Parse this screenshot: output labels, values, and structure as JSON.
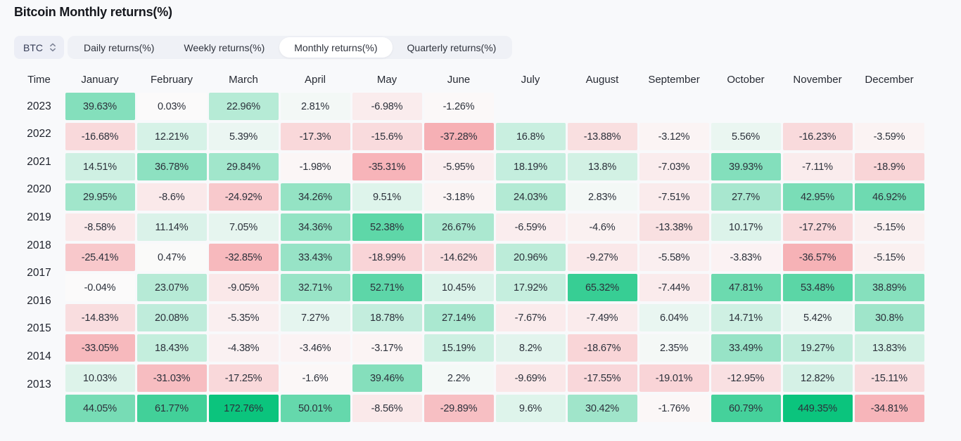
{
  "page": {
    "title": "Bitcoin Monthly returns(%)",
    "background_color": "#f8f9fb"
  },
  "controls": {
    "asset_selector": {
      "value": "BTC",
      "icon": "up-down-chevron-icon"
    },
    "tabs": [
      {
        "label": "Daily returns(%)",
        "active": false
      },
      {
        "label": "Weekly returns(%)",
        "active": false
      },
      {
        "label": "Monthly returns(%)",
        "active": true
      },
      {
        "label": "Quarterly returns(%)",
        "active": false
      }
    ]
  },
  "chart_data": {
    "type": "heatmap",
    "title": "Bitcoin Monthly returns(%)",
    "row_header": "Time",
    "columns": [
      "January",
      "February",
      "March",
      "April",
      "May",
      "June",
      "July",
      "August",
      "September",
      "October",
      "November",
      "December"
    ],
    "rows": [
      {
        "year": "2023",
        "values": [
          39.63,
          0.03,
          22.96,
          2.81,
          -6.98,
          -1.26,
          null,
          null,
          null,
          null,
          null,
          null
        ]
      },
      {
        "year": "2022",
        "values": [
          -16.68,
          12.21,
          5.39,
          -17.3,
          -15.6,
          -37.28,
          16.8,
          -13.88,
          -3.12,
          5.56,
          -16.23,
          -3.59
        ]
      },
      {
        "year": "2021",
        "values": [
          14.51,
          36.78,
          29.84,
          -1.98,
          -35.31,
          -5.95,
          18.19,
          13.8,
          -7.03,
          39.93,
          -7.11,
          -18.9
        ]
      },
      {
        "year": "2020",
        "values": [
          29.95,
          -8.6,
          -24.92,
          34.26,
          9.51,
          -3.18,
          24.03,
          2.83,
          -7.51,
          27.7,
          42.95,
          46.92
        ]
      },
      {
        "year": "2019",
        "values": [
          -8.58,
          11.14,
          7.05,
          34.36,
          52.38,
          26.67,
          -6.59,
          -4.6,
          -13.38,
          10.17,
          -17.27,
          -5.15
        ]
      },
      {
        "year": "2018",
        "values": [
          -25.41,
          0.47,
          -32.85,
          33.43,
          -18.99,
          -14.62,
          20.96,
          -9.27,
          -5.58,
          -3.83,
          -36.57,
          -5.15
        ]
      },
      {
        "year": "2017",
        "values": [
          -0.04,
          23.07,
          -9.05,
          32.71,
          52.71,
          10.45,
          17.92,
          65.32,
          -7.44,
          47.81,
          53.48,
          38.89
        ]
      },
      {
        "year": "2016",
        "values": [
          -14.83,
          20.08,
          -5.35,
          7.27,
          18.78,
          27.14,
          -7.67,
          -7.49,
          6.04,
          14.71,
          5.42,
          30.8
        ]
      },
      {
        "year": "2015",
        "values": [
          -33.05,
          18.43,
          -4.38,
          -3.46,
          -3.17,
          15.19,
          8.2,
          -18.67,
          2.35,
          33.49,
          19.27,
          13.83
        ]
      },
      {
        "year": "2014",
        "values": [
          10.03,
          -31.03,
          -17.25,
          -1.6,
          39.46,
          2.2,
          -9.69,
          -17.55,
          -19.01,
          -12.95,
          12.82,
          -15.11
        ]
      },
      {
        "year": "2013",
        "values": [
          44.05,
          61.77,
          172.76,
          50.01,
          -8.56,
          -29.89,
          9.6,
          30.42,
          -1.76,
          60.79,
          449.35,
          -34.81
        ]
      }
    ],
    "value_suffix": "%",
    "colors": {
      "positive_max": "#0bc47d",
      "negative_max": "#f6abb0",
      "neutral_base": "#fbfafa",
      "scale_cap_positive": 80,
      "scale_cap_negative": -40
    },
    "legend": "none",
    "grid": "off"
  }
}
